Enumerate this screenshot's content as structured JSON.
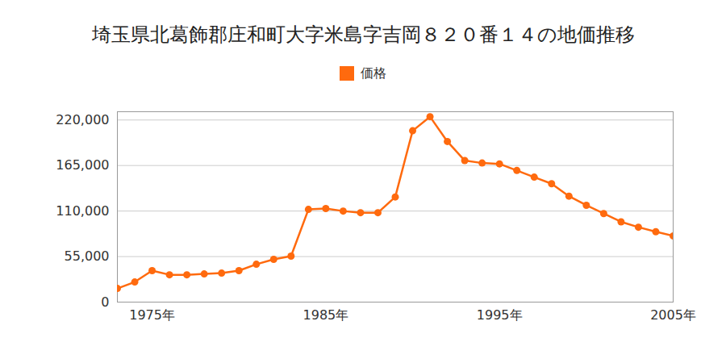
{
  "chart_data": {
    "type": "line",
    "title": "埼玉県北葛飾郡庄和町大字米島字吉岡８２０番１４の地価推移",
    "x": [
      1973,
      1974,
      1975,
      1976,
      1977,
      1978,
      1979,
      1980,
      1981,
      1982,
      1983,
      1984,
      1985,
      1986,
      1987,
      1988,
      1989,
      1990,
      1991,
      1992,
      1993,
      1994,
      1995,
      1996,
      1997,
      1998,
      1999,
      2000,
      2001,
      2002,
      2003,
      2004,
      2005
    ],
    "series": [
      {
        "name": "価格",
        "color": "#ff6a0e",
        "marker": "circle",
        "values": [
          16500,
          24300,
          38000,
          33000,
          33000,
          34000,
          35000,
          38000,
          45700,
          51600,
          55500,
          112000,
          113000,
          110000,
          108000,
          108000,
          127000,
          207000,
          224000,
          194000,
          171000,
          168000,
          167000,
          159000,
          151000,
          143000,
          128000,
          117000,
          107000,
          97000,
          90500,
          85000,
          80000
        ]
      }
    ],
    "xlim": [
      1973,
      2005
    ],
    "xticks": [
      {
        "value": 1975,
        "label": "1975年"
      },
      {
        "value": 1985,
        "label": "1985年"
      },
      {
        "value": 1995,
        "label": "1995年"
      },
      {
        "value": 2005,
        "label": "2005年"
      }
    ],
    "ylim": [
      0,
      230000
    ],
    "yticks": [
      0,
      {
        "value": 55000,
        "label": "55,000"
      },
      {
        "value": 110000,
        "label": "110,000"
      },
      {
        "value": 165000,
        "label": "165,000"
      },
      {
        "value": 220000,
        "label": "220,000"
      }
    ],
    "grid": true,
    "legend": "top"
  }
}
